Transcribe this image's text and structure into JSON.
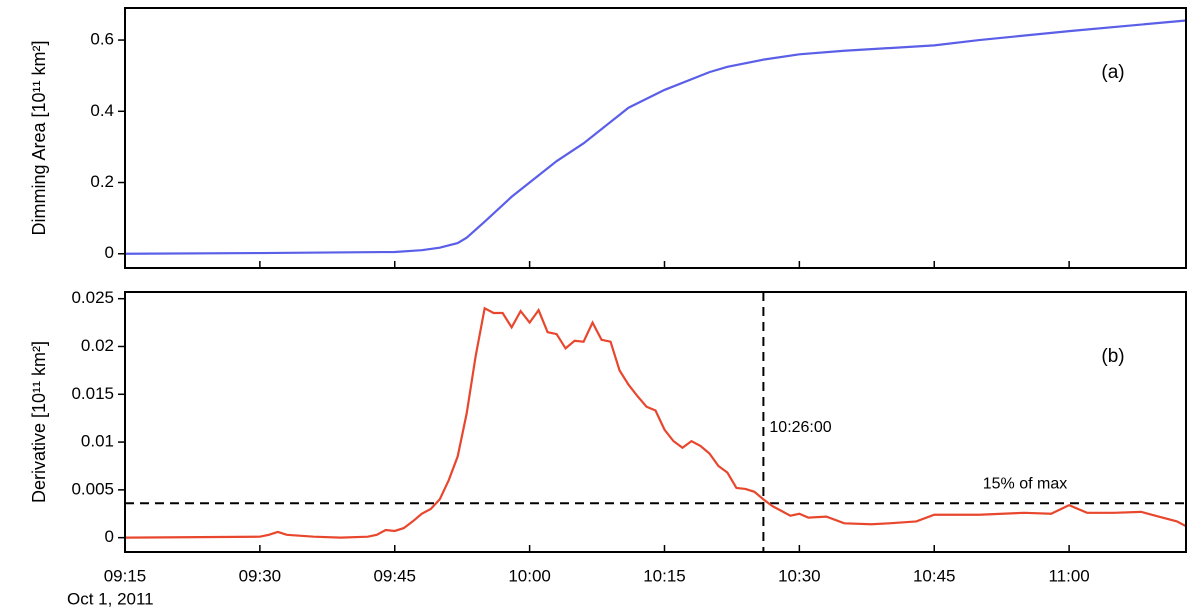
{
  "chart_data": [
    {
      "type": "line",
      "ylabel": "Dimming Area [10¹¹ km²]",
      "panel_label": "(a)",
      "xlim": [
        "09:15",
        "11:13"
      ],
      "xticks": [
        "09:15",
        "09:30",
        "09:45",
        "10:00",
        "10:15",
        "10:30",
        "10:45",
        "11:00"
      ],
      "ylim": [
        -0.04,
        0.69
      ],
      "yticks": [
        0,
        0.2,
        0.4,
        0.6
      ],
      "series": [
        {
          "color": "#5b5fe8",
          "x": [
            "09:15",
            "09:30",
            "09:45",
            "09:48",
            "09:50",
            "09:52",
            "09:53",
            "09:55",
            "09:58",
            "10:00",
            "10:03",
            "10:06",
            "10:10",
            "10:11",
            "10:15",
            "10:20",
            "10:22",
            "10:26",
            "10:30",
            "10:35",
            "10:45",
            "10:50",
            "11:00",
            "11:13"
          ],
          "values": [
            0,
            0.002,
            0.005,
            0.01,
            0.017,
            0.03,
            0.045,
            0.09,
            0.16,
            0.2,
            0.26,
            0.31,
            0.39,
            0.41,
            0.46,
            0.51,
            0.525,
            0.545,
            0.56,
            0.57,
            0.585,
            0.6,
            0.625,
            0.655
          ]
        }
      ]
    },
    {
      "type": "line",
      "ylabel": "Derivative [10¹¹ km²]",
      "panel_label": "(b)",
      "xlabel": "Oct 1, 2011",
      "xlim": [
        "09:15",
        "11:13"
      ],
      "xticks": [
        "09:15",
        "09:30",
        "09:45",
        "10:00",
        "10:15",
        "10:30",
        "10:45",
        "11:00"
      ],
      "ylim": [
        -0.0015,
        0.0257
      ],
      "yticks": [
        0,
        0.005,
        0.01,
        0.015,
        0.02,
        0.025
      ],
      "vline": {
        "x": "10:26:00"
      },
      "hline": {
        "y": 0.0036,
        "text": "15% of max"
      },
      "series": [
        {
          "color": "#e8472e",
          "x": [
            "09:15",
            "09:30",
            "09:31",
            "09:32",
            "09:33",
            "09:36",
            "09:39",
            "09:42",
            "09:43",
            "09:44",
            "09:45",
            "09:46",
            "09:47",
            "09:48",
            "09:49",
            "09:50",
            "09:51",
            "09:52",
            "09:53",
            "09:54",
            "09:55",
            "09:56",
            "09:57",
            "09:58",
            "09:59",
            "10:00",
            "10:01",
            "10:02",
            "10:03",
            "10:04",
            "10:05",
            "10:06",
            "10:07",
            "10:08",
            "10:09",
            "10:10",
            "10:11",
            "10:12",
            "10:13",
            "10:14",
            "10:15",
            "10:16",
            "10:17",
            "10:18",
            "10:19",
            "10:20",
            "10:21",
            "10:22",
            "10:23",
            "10:24",
            "10:25",
            "10:26",
            "10:27",
            "10:28",
            "10:29",
            "10:30",
            "10:31",
            "10:33",
            "10:35",
            "10:38",
            "10:40",
            "10:43",
            "10:45",
            "10:50",
            "10:55",
            "10:58",
            "11:00",
            "11:02",
            "11:05",
            "11:08",
            "11:10",
            "11:12",
            "11:13"
          ],
          "values": [
            0,
            0.0001,
            0.0003,
            0.0006,
            0.0003,
            0.0001,
            0,
            0.0001,
            0.0003,
            0.0008,
            0.0007,
            0.001,
            0.0017,
            0.0025,
            0.003,
            0.004,
            0.006,
            0.0085,
            0.013,
            0.019,
            0.024,
            0.0235,
            0.0235,
            0.022,
            0.0237,
            0.0225,
            0.0238,
            0.0215,
            0.0213,
            0.0198,
            0.0206,
            0.0205,
            0.0225,
            0.0207,
            0.0205,
            0.0175,
            0.016,
            0.0148,
            0.0137,
            0.0133,
            0.0113,
            0.0101,
            0.0094,
            0.0101,
            0.0096,
            0.0088,
            0.0075,
            0.0068,
            0.0052,
            0.0051,
            0.0048,
            0.004,
            0.0033,
            0.0028,
            0.0023,
            0.0025,
            0.0021,
            0.0022,
            0.0015,
            0.0014,
            0.0015,
            0.0017,
            0.0024,
            0.0024,
            0.0026,
            0.0025,
            0.0034,
            0.0026,
            0.0026,
            0.0027,
            0.0022,
            0.0017,
            0.0012
          ]
        }
      ]
    }
  ]
}
